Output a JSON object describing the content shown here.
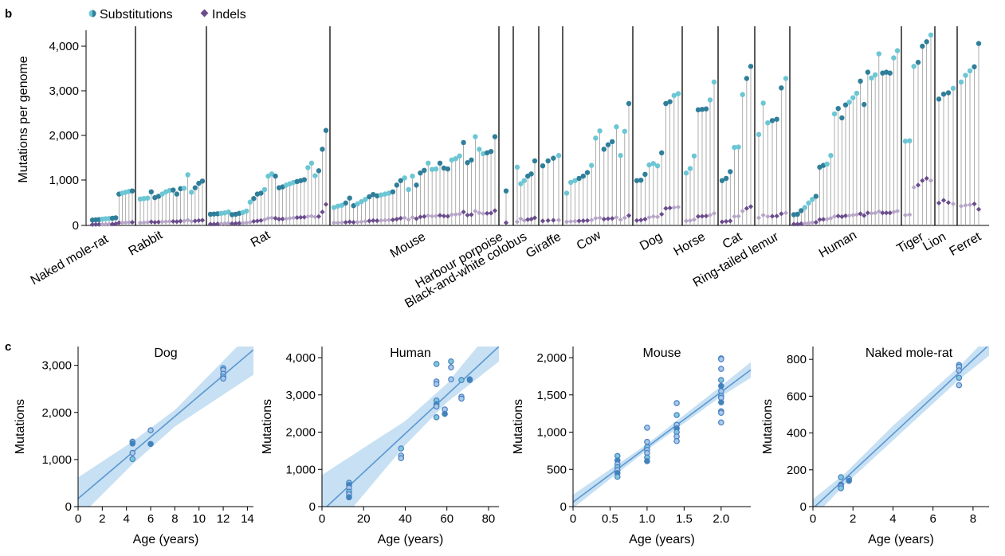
{
  "panel_b": {
    "letter": "b",
    "legend": {
      "substitutions": "Substitutions",
      "indels": "Indels"
    },
    "colors": {
      "substitutions_light": "#6cc6d4",
      "substitutions_dark": "#2f7f9a",
      "indels_dark": "#6a4c8c",
      "indels_light": "#b6a6c6",
      "stem": "#9a9a9a"
    },
    "ylabel": "Mutations per genome",
    "yticks": [
      "0",
      "1,000",
      "2,000",
      "3,000",
      "4,000"
    ]
  },
  "panel_c": {
    "letter": "c",
    "xlabel": "Age (years)",
    "ylabel": "Mutations"
  },
  "chart_data": [
    {
      "type": "scatter",
      "subtype": "lollipop",
      "ylabel": "Mutations per genome",
      "ylim": [
        0,
        4500
      ],
      "grid": false,
      "legend": "top-left",
      "species": [
        {
          "name": "Naked mole-rat",
          "substitutions": [
            120,
            125,
            130,
            140,
            150,
            155,
            160,
            170,
            700,
            720,
            740,
            760,
            770
          ],
          "indels": [
            20,
            22,
            25,
            25,
            28,
            30,
            32,
            35,
            60,
            62,
            65,
            68,
            70
          ]
        },
        {
          "name": "Rabbit",
          "substitutions": [
            590,
            600,
            610,
            750,
            620,
            650,
            700,
            750,
            780,
            790,
            700,
            820,
            830,
            1130,
            740,
            840,
            940,
            990
          ],
          "indels": [
            60,
            65,
            70,
            80,
            70,
            75,
            80,
            85,
            90,
            90,
            85,
            95,
            100,
            120,
            90,
            100,
            110,
            115
          ]
        },
        {
          "name": "Rat",
          "substitutions": [
            250,
            255,
            260,
            270,
            280,
            300,
            240,
            250,
            270,
            290,
            320,
            520,
            600,
            700,
            720,
            800,
            1100,
            1150,
            1100,
            840,
            860,
            900,
            930,
            960,
            980,
            1000,
            1020,
            1290,
            1390,
            1110,
            1220,
            1700,
            2120
          ],
          "indels": [
            30,
            30,
            35,
            40,
            45,
            50,
            40,
            45,
            50,
            55,
            60,
            70,
            90,
            100,
            110,
            130,
            160,
            170,
            160,
            140,
            145,
            150,
            160,
            170,
            175,
            180,
            185,
            200,
            210,
            190,
            200,
            300,
            470
          ]
        },
        {
          "name": "Mouse",
          "substitutions": [
            400,
            430,
            450,
            500,
            610,
            440,
            480,
            530,
            580,
            640,
            690,
            660,
            680,
            700,
            720,
            750,
            900,
            1000,
            1060,
            800,
            1100,
            900,
            1170,
            1230,
            1390,
            1250,
            1260,
            1390,
            1280,
            1260,
            1460,
            1490,
            1550,
            1850,
            1400,
            1460,
            1980,
            1700,
            1600,
            1620,
            1650,
            1980
          ],
          "indels": [
            60,
            60,
            65,
            70,
            80,
            70,
            75,
            80,
            90,
            100,
            110,
            105,
            110,
            115,
            120,
            125,
            140,
            160,
            170,
            130,
            180,
            150,
            190,
            200,
            220,
            205,
            210,
            225,
            210,
            205,
            240,
            245,
            255,
            300,
            230,
            240,
            320,
            280,
            265,
            270,
            275,
            330
          ]
        },
        {
          "name": "Harbour porpoise",
          "substitutions": [
            770
          ],
          "indels": [
            60
          ]
        },
        {
          "name": "Black-and-white colobus",
          "substitutions": [
            1300,
            930,
            1000,
            1100,
            1150,
            1440
          ],
          "indels": [
            80,
            150,
            110,
            130,
            140,
            170
          ]
        },
        {
          "name": "Giraffe",
          "substitutions": [
            1330,
            1440,
            1500,
            1560
          ],
          "indels": [
            100,
            110,
            115,
            120
          ]
        },
        {
          "name": "Cow",
          "substitutions": [
            720,
            960,
            1000,
            1050,
            1100,
            1180,
            1340,
            1950,
            2110,
            1700,
            1800,
            1870,
            2200,
            1560,
            2100,
            2720
          ],
          "indels": [
            80,
            90,
            95,
            100,
            105,
            110,
            120,
            160,
            170,
            140,
            150,
            155,
            180,
            130,
            170,
            220
          ]
        },
        {
          "name": "Dog",
          "substitutions": [
            1000,
            1010,
            1140,
            1350,
            1380,
            1330,
            1620,
            2720,
            2760,
            2900,
            2940
          ],
          "indels": [
            110,
            120,
            140,
            180,
            200,
            190,
            250,
            380,
            390,
            400,
            410
          ]
        },
        {
          "name": "Horse",
          "substitutions": [
            1170,
            1270,
            1550,
            2580,
            2590,
            2600,
            2800,
            3200
          ],
          "indels": [
            100,
            110,
            130,
            200,
            205,
            210,
            230,
            270
          ]
        },
        {
          "name": "Cat",
          "substitutions": [
            1000,
            1050,
            1200,
            1740,
            1750,
            2920,
            3280,
            3550
          ],
          "indels": [
            80,
            90,
            100,
            200,
            205,
            320,
            380,
            420
          ]
        },
        {
          "name": "Ring-tailed lemur",
          "substitutions": [
            2030,
            2730,
            2290,
            2340,
            2370,
            3070,
            3280
          ],
          "indels": [
            170,
            230,
            200,
            205,
            210,
            260,
            280
          ]
        },
        {
          "name": "Human",
          "substitutions": [
            240,
            250,
            330,
            400,
            500,
            580,
            650,
            1300,
            1340,
            1370,
            1560,
            2490,
            2610,
            2400,
            2690,
            2750,
            2850,
            2950,
            3220,
            2700,
            3420,
            3290,
            3360,
            3830,
            3400,
            3420,
            3400,
            3740,
            3900
          ],
          "indels": [
            30,
            30,
            40,
            45,
            55,
            65,
            70,
            130,
            135,
            140,
            160,
            200,
            210,
            195,
            215,
            220,
            230,
            240,
            260,
            220,
            280,
            270,
            275,
            310,
            280,
            280,
            280,
            300,
            320
          ]
        },
        {
          "name": "Tiger",
          "substitutions": [
            1880,
            1890,
            3550,
            3640,
            4000,
            4100,
            4250
          ],
          "indels": [
            230,
            240,
            850,
            900,
            1000,
            1050,
            1000
          ]
        },
        {
          "name": "Lion",
          "substitutions": [
            2820,
            2930,
            2960,
            3060
          ],
          "indels": [
            500,
            560,
            510,
            480
          ]
        },
        {
          "name": "Ferret",
          "substitutions": [
            3200,
            3350,
            3450,
            3540,
            4060
          ],
          "indels": [
            430,
            450,
            460,
            480,
            360
          ]
        }
      ]
    },
    {
      "type": "scatter",
      "title": "Dog",
      "xlabel": "Age (years)",
      "ylabel": "Mutations",
      "xlim": [
        0,
        14.5
      ],
      "ylim": [
        0,
        3400
      ],
      "xticks": [
        0,
        2,
        4,
        6,
        8,
        10,
        12,
        14
      ],
      "yticks": [
        0,
        1000,
        2000,
        3000
      ],
      "ytick_labels": [
        "0",
        "1,000",
        "2,000",
        "3,000"
      ],
      "points": [
        {
          "x": 4.5,
          "y": 1380
        },
        {
          "x": 4.5,
          "y": 1340
        },
        {
          "x": 4.5,
          "y": 1140
        },
        {
          "x": 4.5,
          "y": 1010
        },
        {
          "x": 6.0,
          "y": 1620
        },
        {
          "x": 6.0,
          "y": 1330
        },
        {
          "x": 12.0,
          "y": 2940
        },
        {
          "x": 12.0,
          "y": 2900
        },
        {
          "x": 12.0,
          "y": 2820
        },
        {
          "x": 12.0,
          "y": 2760
        },
        {
          "x": 12.0,
          "y": 2720
        }
      ],
      "fit": {
        "intercept": 170,
        "slope": 218
      },
      "band": [
        {
          "x": 0,
          "lo": -250,
          "hi": 620
        },
        {
          "x": 4.5,
          "lo": 900,
          "hi": 1380
        },
        {
          "x": 8,
          "lo": 1700,
          "hi": 2050
        },
        {
          "x": 14.5,
          "lo": 2800,
          "hi": 3750
        }
      ]
    },
    {
      "type": "scatter",
      "title": "Human",
      "xlabel": "Age (years)",
      "ylabel": "Mutations",
      "xlim": [
        0,
        85
      ],
      "ylim": [
        0,
        4300
      ],
      "xticks": [
        0,
        20,
        40,
        60,
        80
      ],
      "yticks": [
        0,
        1000,
        2000,
        3000,
        4000
      ],
      "ytick_labels": [
        "0",
        "1,000",
        "2,000",
        "3,000",
        "4,000"
      ],
      "points": [
        {
          "x": 13,
          "y": 640
        },
        {
          "x": 13,
          "y": 580
        },
        {
          "x": 13,
          "y": 500
        },
        {
          "x": 13,
          "y": 400
        },
        {
          "x": 13,
          "y": 330
        },
        {
          "x": 13,
          "y": 250
        },
        {
          "x": 38,
          "y": 1560
        },
        {
          "x": 38,
          "y": 1370
        },
        {
          "x": 38,
          "y": 1300
        },
        {
          "x": 55,
          "y": 3830
        },
        {
          "x": 55,
          "y": 3360
        },
        {
          "x": 55,
          "y": 3290
        },
        {
          "x": 55,
          "y": 2850
        },
        {
          "x": 55,
          "y": 2750
        },
        {
          "x": 55,
          "y": 2690
        },
        {
          "x": 55,
          "y": 2400
        },
        {
          "x": 59,
          "y": 2610
        },
        {
          "x": 59,
          "y": 2490
        },
        {
          "x": 62,
          "y": 3900
        },
        {
          "x": 62,
          "y": 3740
        },
        {
          "x": 62,
          "y": 3420
        },
        {
          "x": 67,
          "y": 3400
        },
        {
          "x": 67,
          "y": 2950
        },
        {
          "x": 67,
          "y": 2900
        },
        {
          "x": 71,
          "y": 3420
        },
        {
          "x": 71,
          "y": 3400
        }
      ],
      "fit": {
        "intercept": -120,
        "slope": 52
      },
      "band": [
        {
          "x": 0,
          "lo": -1000,
          "hi": 850
        },
        {
          "x": 40,
          "lo": 1650,
          "hi": 2300
        },
        {
          "x": 60,
          "lo": 2800,
          "hi": 3300
        },
        {
          "x": 85,
          "lo": 3900,
          "hi": 5000
        }
      ]
    },
    {
      "type": "scatter",
      "title": "Mouse",
      "xlabel": "Age (years)",
      "ylabel": "Mutations",
      "xlim": [
        0,
        2.4
      ],
      "ylim": [
        0,
        2150
      ],
      "xticks": [
        0,
        0.5,
        1.0,
        1.5,
        2.0
      ],
      "xtick_labels": [
        "0",
        "0.5",
        "1.0",
        "1.5",
        "2.0"
      ],
      "yticks": [
        0,
        500,
        1000,
        1500,
        2000
      ],
      "ytick_labels": [
        "0",
        "500",
        "1,000",
        "1,500",
        "2,000"
      ],
      "points": [
        {
          "x": 0.6,
          "y": 680
        },
        {
          "x": 0.6,
          "y": 620
        },
        {
          "x": 0.6,
          "y": 570
        },
        {
          "x": 0.6,
          "y": 530
        },
        {
          "x": 0.6,
          "y": 490
        },
        {
          "x": 0.6,
          "y": 450
        },
        {
          "x": 0.6,
          "y": 400
        },
        {
          "x": 1.0,
          "y": 1060
        },
        {
          "x": 1.0,
          "y": 870
        },
        {
          "x": 1.0,
          "y": 800
        },
        {
          "x": 1.0,
          "y": 760
        },
        {
          "x": 1.0,
          "y": 720
        },
        {
          "x": 1.0,
          "y": 660
        },
        {
          "x": 1.0,
          "y": 610
        },
        {
          "x": 1.4,
          "y": 1390
        },
        {
          "x": 1.4,
          "y": 1230
        },
        {
          "x": 1.4,
          "y": 1100
        },
        {
          "x": 1.4,
          "y": 1050
        },
        {
          "x": 1.4,
          "y": 1000
        },
        {
          "x": 1.4,
          "y": 940
        },
        {
          "x": 1.4,
          "y": 880
        },
        {
          "x": 2.0,
          "y": 1990
        },
        {
          "x": 2.0,
          "y": 1980
        },
        {
          "x": 2.0,
          "y": 1850
        },
        {
          "x": 2.0,
          "y": 1700
        },
        {
          "x": 2.0,
          "y": 1620
        },
        {
          "x": 2.0,
          "y": 1550
        },
        {
          "x": 2.0,
          "y": 1490
        },
        {
          "x": 2.0,
          "y": 1460
        },
        {
          "x": 2.0,
          "y": 1400
        },
        {
          "x": 2.0,
          "y": 1280
        },
        {
          "x": 2.0,
          "y": 1260
        },
        {
          "x": 2.0,
          "y": 1130
        }
      ],
      "fit": {
        "intercept": 60,
        "slope": 740
      },
      "band": [
        {
          "x": 0,
          "lo": -20,
          "hi": 160
        },
        {
          "x": 1.0,
          "lo": 760,
          "hi": 840
        },
        {
          "x": 2.0,
          "lo": 1480,
          "hi": 1620
        },
        {
          "x": 2.4,
          "lo": 1730,
          "hi": 1940
        }
      ]
    },
    {
      "type": "scatter",
      "title": "Naked mole-rat",
      "xlabel": "Age (years)",
      "ylabel": "Mutations",
      "xlim": [
        0,
        8.8
      ],
      "ylim": [
        0,
        870
      ],
      "xticks": [
        0,
        2,
        4,
        6,
        8
      ],
      "yticks": [
        0,
        200,
        400,
        600,
        800
      ],
      "points": [
        {
          "x": 1.4,
          "y": 160
        },
        {
          "x": 1.4,
          "y": 120
        },
        {
          "x": 1.4,
          "y": 110
        },
        {
          "x": 1.4,
          "y": 100
        },
        {
          "x": 1.8,
          "y": 150
        },
        {
          "x": 1.8,
          "y": 140
        },
        {
          "x": 7.3,
          "y": 770
        },
        {
          "x": 7.3,
          "y": 760
        },
        {
          "x": 7.3,
          "y": 740
        },
        {
          "x": 7.3,
          "y": 700
        },
        {
          "x": 7.3,
          "y": 660
        }
      ],
      "fit": {
        "intercept": -10,
        "slope": 101
      },
      "band": [
        {
          "x": 0,
          "lo": -60,
          "hi": 40
        },
        {
          "x": 1.6,
          "lo": 120,
          "hi": 180
        },
        {
          "x": 4,
          "lo": 360,
          "hi": 440
        },
        {
          "x": 7.3,
          "lo": 690,
          "hi": 760
        },
        {
          "x": 8.8,
          "lo": 820,
          "hi": 930
        }
      ]
    }
  ]
}
